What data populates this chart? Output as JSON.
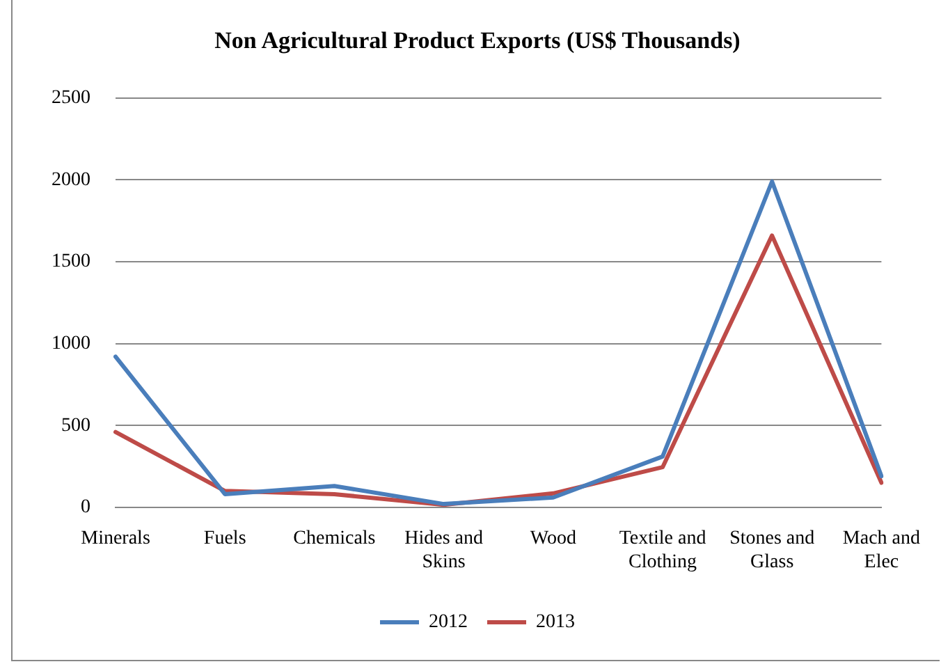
{
  "chart_data": {
    "type": "line",
    "title": "Non Agricultural Product Exports (US$ Thousands)",
    "categories": [
      "Minerals",
      "Fuels",
      "Chemicals",
      "Hides and Skins",
      "Wood",
      "Textile and Clothing",
      "Stones and Glass",
      "Mach and Elec"
    ],
    "series": [
      {
        "name": "2012",
        "color": "#4a7ebb",
        "values": [
          920,
          80,
          130,
          20,
          60,
          310,
          1990,
          190
        ]
      },
      {
        "name": "2013",
        "color": "#be4b48",
        "values": [
          460,
          100,
          80,
          15,
          85,
          245,
          1660,
          150
        ]
      }
    ],
    "ylim": [
      0,
      2500
    ],
    "yticks": [
      0,
      500,
      1000,
      1500,
      2000,
      2500
    ],
    "grid": "y",
    "legend": "bottom",
    "marker": "none",
    "line_style": "solid"
  }
}
